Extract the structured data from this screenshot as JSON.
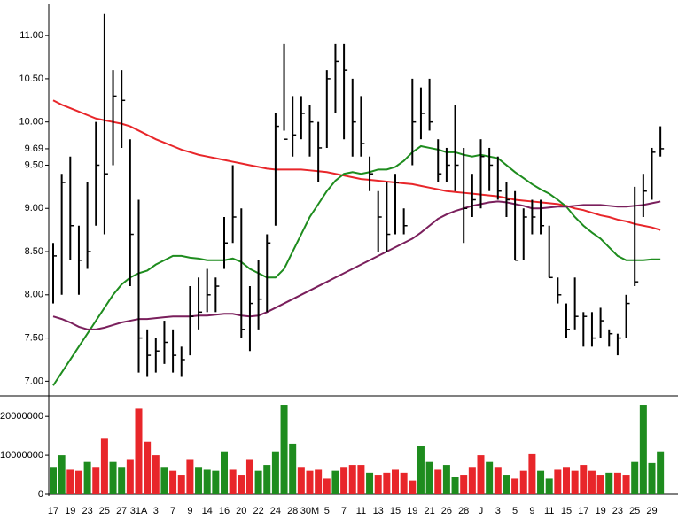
{
  "chart_data": [
    {
      "type": "ohlc",
      "high": [
        8.6,
        9.4,
        9.6,
        8.8,
        9.3,
        10.0,
        11.25,
        10.6,
        10.6,
        9.8,
        9.1,
        7.6,
        7.5,
        7.7,
        7.6,
        7.4,
        8.1,
        8.2,
        8.3,
        8.2,
        8.9,
        9.5,
        9.0,
        8.1,
        8.4,
        8.7,
        10.1,
        10.9,
        10.3,
        10.3,
        10.2,
        10.0,
        10.6,
        10.9,
        10.9,
        10.5,
        10.3,
        9.6,
        9.2,
        9.3,
        9.4,
        9.0,
        10.5,
        10.4,
        10.5,
        9.8,
        9.7,
        10.2,
        9.7,
        9.4,
        9.8,
        9.7,
        9.6,
        9.3,
        9.2,
        9.0,
        9.1,
        9.1,
        8.8,
        8.2,
        7.9,
        8.2,
        7.8,
        7.8,
        7.85,
        7.6,
        7.55,
        8.0,
        9.25,
        9.4,
        9.7,
        9.95
      ],
      "low": [
        7.9,
        8.0,
        8.4,
        8.0,
        8.3,
        8.8,
        8.7,
        9.5,
        9.7,
        8.1,
        7.1,
        7.05,
        7.1,
        7.2,
        7.1,
        7.05,
        7.3,
        7.6,
        7.8,
        7.8,
        8.3,
        8.6,
        7.5,
        7.35,
        7.6,
        7.8,
        8.8,
        9.9,
        9.6,
        9.8,
        9.6,
        9.3,
        9.7,
        10.1,
        9.8,
        9.6,
        9.6,
        9.2,
        8.5,
        8.5,
        8.7,
        8.7,
        9.5,
        9.8,
        9.9,
        9.3,
        9.3,
        9.2,
        8.6,
        8.9,
        9.0,
        9.2,
        9.1,
        8.9,
        8.4,
        8.4,
        8.7,
        8.7,
        8.2,
        7.9,
        7.5,
        7.6,
        7.4,
        7.4,
        7.5,
        7.4,
        7.3,
        7.5,
        8.1,
        8.9,
        9.1,
        9.6
      ],
      "close": [
        8.45,
        9.3,
        8.8,
        8.4,
        8.5,
        9.5,
        9.4,
        10.3,
        10.25,
        8.7,
        7.5,
        7.3,
        7.35,
        7.45,
        7.3,
        7.25,
        7.75,
        7.8,
        8.0,
        8.1,
        8.6,
        8.9,
        7.6,
        7.9,
        7.95,
        8.6,
        9.95,
        9.8,
        9.85,
        10.1,
        10.0,
        9.7,
        10.5,
        10.7,
        10.6,
        10.0,
        9.75,
        9.4,
        8.9,
        8.7,
        9.3,
        8.8,
        10.0,
        10.1,
        10.0,
        9.4,
        9.5,
        9.5,
        9.0,
        9.1,
        9.6,
        9.5,
        9.2,
        9.1,
        8.4,
        8.9,
        8.9,
        8.8,
        8.2,
        8.0,
        7.6,
        7.75,
        7.75,
        7.5,
        7.7,
        7.55,
        7.5,
        7.9,
        8.15,
        9.2,
        9.65,
        9.69
      ],
      "bar_color": "#000000",
      "lines": [
        {
          "color": "#e8262a",
          "values": [
            10.25,
            10.2,
            10.16,
            10.12,
            10.08,
            10.04,
            10.02,
            10.0,
            9.98,
            9.95,
            9.9,
            9.85,
            9.8,
            9.76,
            9.72,
            9.68,
            9.65,
            9.62,
            9.6,
            9.58,
            9.56,
            9.54,
            9.52,
            9.5,
            9.48,
            9.46,
            9.45,
            9.45,
            9.45,
            9.45,
            9.44,
            9.43,
            9.42,
            9.4,
            9.38,
            9.36,
            9.34,
            9.33,
            9.32,
            9.31,
            9.3,
            9.29,
            9.28,
            9.26,
            9.24,
            9.22,
            9.2,
            9.19,
            9.18,
            9.17,
            9.16,
            9.15,
            9.14,
            9.12,
            9.1,
            9.09,
            9.08,
            9.07,
            9.06,
            9.05,
            9.03,
            9.0,
            8.98,
            8.95,
            8.92,
            8.9,
            8.87,
            8.85,
            8.82,
            8.8,
            8.78,
            8.75
          ]
        },
        {
          "color": "#1e8c1e",
          "values": [
            6.95,
            7.1,
            7.25,
            7.4,
            7.55,
            7.7,
            7.85,
            8.0,
            8.12,
            8.2,
            8.25,
            8.28,
            8.35,
            8.4,
            8.45,
            8.45,
            8.43,
            8.42,
            8.4,
            8.4,
            8.4,
            8.42,
            8.38,
            8.3,
            8.25,
            8.2,
            8.2,
            8.3,
            8.5,
            8.7,
            8.9,
            9.05,
            9.2,
            9.32,
            9.4,
            9.42,
            9.4,
            9.42,
            9.45,
            9.45,
            9.48,
            9.55,
            9.65,
            9.72,
            9.7,
            9.68,
            9.65,
            9.65,
            9.62,
            9.6,
            9.62,
            9.6,
            9.58,
            9.5,
            9.42,
            9.35,
            9.28,
            9.22,
            9.17,
            9.1,
            9.02,
            8.9,
            8.8,
            8.72,
            8.65,
            8.55,
            8.45,
            8.4,
            8.4,
            8.4,
            8.41,
            8.41
          ]
        },
        {
          "color": "#7a1f5c",
          "values": [
            7.75,
            7.72,
            7.68,
            7.63,
            7.6,
            7.6,
            7.62,
            7.65,
            7.68,
            7.7,
            7.72,
            7.72,
            7.73,
            7.74,
            7.75,
            7.75,
            7.75,
            7.76,
            7.76,
            7.77,
            7.78,
            7.78,
            7.76,
            7.75,
            7.76,
            7.8,
            7.85,
            7.9,
            7.95,
            8.0,
            8.05,
            8.1,
            8.15,
            8.2,
            8.25,
            8.3,
            8.35,
            8.4,
            8.45,
            8.5,
            8.55,
            8.6,
            8.65,
            8.72,
            8.8,
            8.88,
            8.93,
            8.97,
            9.0,
            9.03,
            9.05,
            9.07,
            9.08,
            9.07,
            9.05,
            9.03,
            9.0,
            9.0,
            9.01,
            9.02,
            9.02,
            9.03,
            9.04,
            9.04,
            9.04,
            9.03,
            9.02,
            9.02,
            9.03,
            9.04,
            9.06,
            9.08
          ]
        }
      ],
      "ylim": [
        6.85,
        11.36
      ],
      "yticks": [
        {
          "value": 7,
          "label": "7.00"
        },
        {
          "value": 7.5,
          "label": "7.50"
        },
        {
          "value": 8,
          "label": "8.00"
        },
        {
          "value": 8.5,
          "label": "8.50"
        },
        {
          "value": 9,
          "label": "9.00"
        },
        {
          "value": 9.5,
          "label": "9.50"
        },
        {
          "value": 9.69,
          "label": "9.69"
        },
        {
          "value": 10,
          "label": "10.00"
        },
        {
          "value": 10.5,
          "label": "10.50"
        },
        {
          "value": 11,
          "label": "11.00"
        }
      ]
    },
    {
      "type": "bar",
      "categories": [
        "17",
        null,
        "19",
        null,
        "23",
        null,
        "25",
        null,
        "27",
        null,
        "31A",
        null,
        "3",
        null,
        "7",
        null,
        "9",
        null,
        "14",
        null,
        "16",
        null,
        "20",
        null,
        "22",
        null,
        "24",
        null,
        "28",
        null,
        "30M",
        null,
        "5",
        null,
        "7",
        null,
        "11",
        null,
        "13",
        null,
        "15",
        null,
        "19",
        null,
        "21",
        null,
        "26",
        null,
        "28",
        null,
        "J",
        null,
        "3",
        null,
        "5",
        null,
        "9",
        null,
        "11",
        null,
        "15",
        null,
        "17",
        null,
        "19",
        null,
        "23",
        null,
        "25",
        null,
        "29",
        null
      ],
      "values": [
        7000000,
        10000000,
        6500000,
        6000000,
        8500000,
        7000000,
        14500000,
        8500000,
        7000000,
        9000000,
        22000000,
        13500000,
        10000000,
        7000000,
        6000000,
        5000000,
        9000000,
        7000000,
        6500000,
        6000000,
        11000000,
        6500000,
        5000000,
        9000000,
        6000000,
        7500000,
        11000000,
        23000000,
        13000000,
        7000000,
        6000000,
        6500000,
        4000000,
        6000000,
        7000000,
        7500000,
        7500000,
        5500000,
        5000000,
        5500000,
        6500000,
        5500000,
        3500000,
        12500000,
        8500000,
        6500000,
        7500000,
        4500000,
        5000000,
        7000000,
        10000000,
        8500000,
        7000000,
        5000000,
        4000000,
        6000000,
        10500000,
        6000000,
        4000000,
        6500000,
        7000000,
        6000000,
        7500000,
        6000000,
        5000000,
        5500000,
        5500000,
        5000000,
        8500000,
        23000000,
        8000000,
        11000000
      ],
      "colors": [
        "#1e8c1e",
        "#1e8c1e",
        "#e8262a",
        "#e8262a",
        "#1e8c1e",
        "#e8262a",
        "#e8262a",
        "#1e8c1e",
        "#1e8c1e",
        "#e8262a",
        "#e8262a",
        "#e8262a",
        "#e8262a",
        "#1e8c1e",
        "#e8262a",
        "#e8262a",
        "#e8262a",
        "#1e8c1e",
        "#1e8c1e",
        "#1e8c1e",
        "#1e8c1e",
        "#e8262a",
        "#e8262a",
        "#e8262a",
        "#1e8c1e",
        "#1e8c1e",
        "#1e8c1e",
        "#1e8c1e",
        "#1e8c1e",
        "#e8262a",
        "#e8262a",
        "#e8262a",
        "#e8262a",
        "#1e8c1e",
        "#e8262a",
        "#e8262a",
        "#e8262a",
        "#1e8c1e",
        "#e8262a",
        "#e8262a",
        "#e8262a",
        "#e8262a",
        "#e8262a",
        "#1e8c1e",
        "#1e8c1e",
        "#e8262a",
        "#1e8c1e",
        "#1e8c1e",
        "#e8262a",
        "#e8262a",
        "#e8262a",
        "#1e8c1e",
        "#e8262a",
        "#1e8c1e",
        "#e8262a",
        "#e8262a",
        "#e8262a",
        "#1e8c1e",
        "#1e8c1e",
        "#e8262a",
        "#e8262a",
        "#e8262a",
        "#e8262a",
        "#e8262a",
        "#e8262a",
        "#1e8c1e",
        "#e8262a",
        "#e8262a",
        "#1e8c1e",
        "#1e8c1e",
        "#1e8c1e",
        "#1e8c1e"
      ],
      "ylim": [
        0,
        24600000
      ],
      "yticks": [
        0,
        10000000,
        20000000
      ]
    }
  ]
}
